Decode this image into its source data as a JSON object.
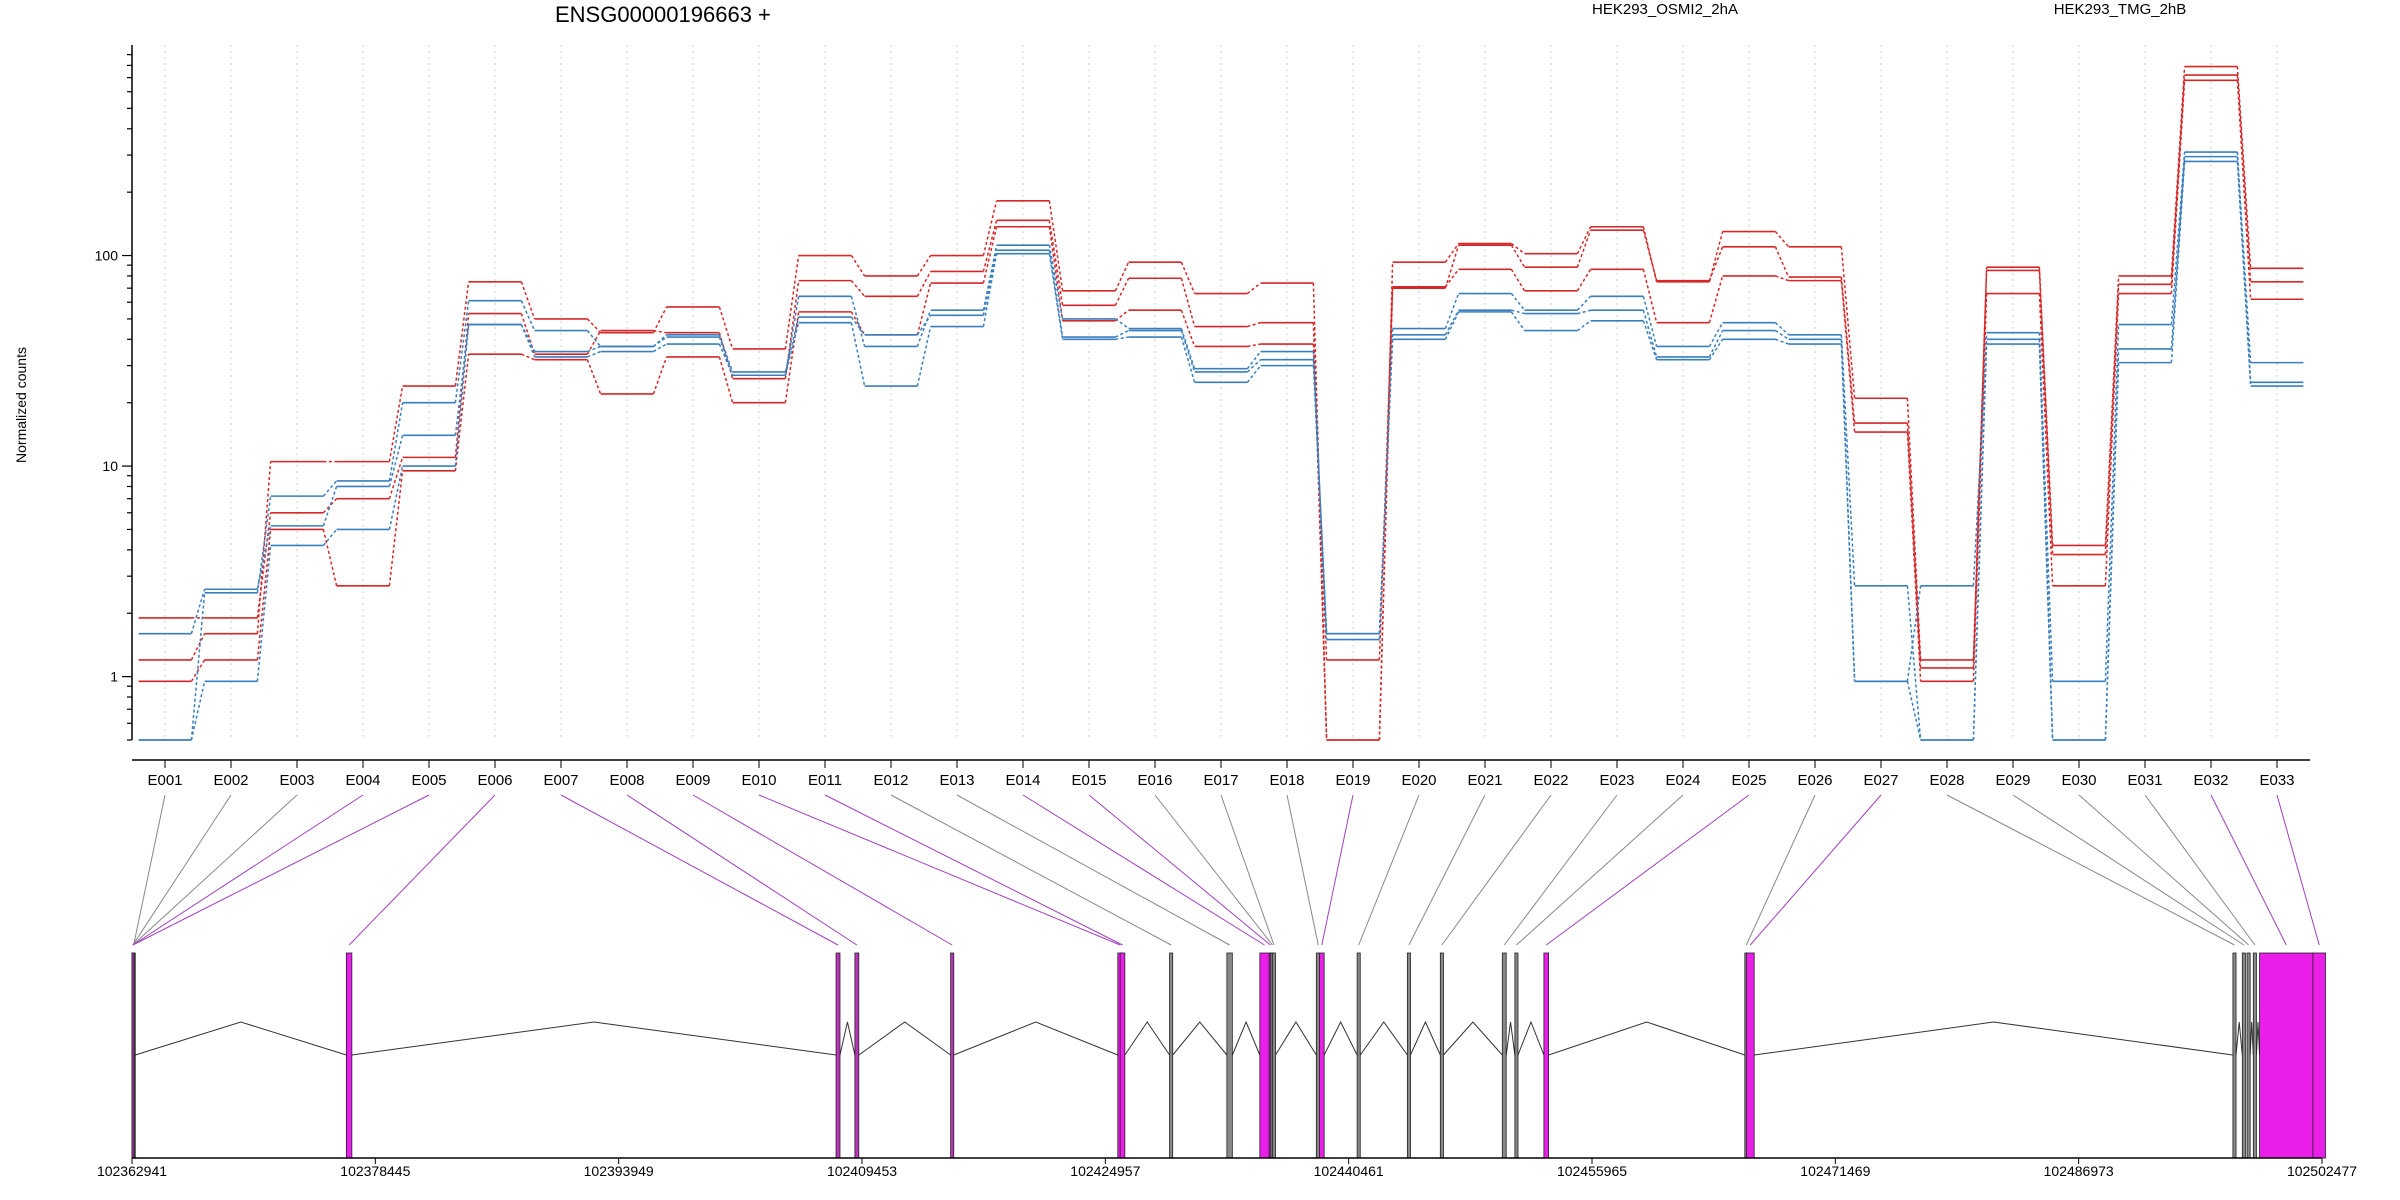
{
  "chart_data": {
    "type": "line",
    "title": "ENSG00000196663 +",
    "ylabel": "Normalized counts",
    "xlabel": "",
    "yscale": "log",
    "ylim": [
      0.5,
      1000
    ],
    "yticks": [
      1,
      10,
      100
    ],
    "ytick_labels": [
      "1",
      "10",
      "100"
    ],
    "grid": true,
    "legend": [
      {
        "name": "HEK293_OSMI2_2hA",
        "color": "#d62728"
      },
      {
        "name": "HEK293_TMG_2hB",
        "color": "#3a7fbd"
      }
    ],
    "categories": [
      "E001",
      "E002",
      "E003",
      "E004",
      "E005",
      "E006",
      "E007",
      "E008",
      "E009",
      "E010",
      "E011",
      "E012",
      "E013",
      "E014",
      "E015",
      "E016",
      "E017",
      "E018",
      "E019",
      "E020",
      "E021",
      "E022",
      "E023",
      "E024",
      "E025",
      "E026",
      "E027",
      "E028",
      "E029",
      "E030",
      "E031",
      "E032",
      "E033"
    ],
    "series": [
      {
        "group": "HEK293_OSMI2_2hA",
        "color": "#d62728",
        "values": [
          1.2,
          1.6,
          10.5,
          10.5,
          24,
          75,
          50,
          43,
          57,
          36,
          100,
          80,
          100,
          182,
          68,
          93,
          66,
          74,
          0.5,
          93,
          114,
          102,
          137,
          75,
          130,
          110,
          21,
          1.2,
          88,
          4.2,
          80,
          790,
          87
        ]
      },
      {
        "group": "HEK293_OSMI2_2hA",
        "color": "#d62728",
        "values": [
          1.9,
          1.9,
          6,
          7,
          11,
          53,
          34,
          44,
          43,
          26,
          76,
          64,
          84,
          147,
          58,
          78,
          46,
          48,
          0.5,
          70,
          112,
          88,
          132,
          76,
          110,
          79,
          16,
          1.1,
          85,
          3.8,
          73,
          720,
          75
        ]
      },
      {
        "group": "HEK293_OSMI2_2hA",
        "color": "#d62728",
        "values": [
          0.95,
          1.2,
          5,
          2.7,
          9.5,
          34,
          32,
          22,
          33,
          20,
          54,
          42,
          74,
          137,
          49,
          55,
          37,
          38,
          1.2,
          71,
          86,
          68,
          86,
          48,
          80,
          76,
          14.5,
          0.95,
          66,
          2.7,
          66,
          680,
          62
        ]
      },
      {
        "group": "HEK293_TMG_2hB",
        "color": "#3a7fbd",
        "values": [
          0.5,
          2.5,
          7.2,
          8.5,
          20,
          61,
          44,
          37,
          41,
          27,
          64,
          37,
          55,
          112,
          50,
          45,
          29,
          35,
          1.5,
          45,
          66,
          55,
          64,
          37,
          48,
          42,
          2.7,
          0.5,
          43,
          0.95,
          47,
          310,
          31
        ]
      },
      {
        "group": "HEK293_TMG_2hB",
        "color": "#3a7fbd",
        "values": [
          1.6,
          2.6,
          5.2,
          8,
          14,
          47,
          35,
          37,
          42,
          28,
          51,
          42,
          52,
          106,
          41,
          44,
          28,
          32,
          1.6,
          42,
          55,
          53,
          55,
          33,
          44,
          40,
          0.95,
          2.7,
          40,
          0.5,
          36,
          295,
          25
        ]
      },
      {
        "group": "HEK293_TMG_2hB",
        "color": "#3a7fbd",
        "values": [
          0.5,
          0.95,
          4.2,
          5,
          10,
          47,
          33,
          35,
          38,
          27,
          48,
          24,
          46,
          102,
          40,
          41,
          25,
          30,
          1.6,
          40,
          54,
          44,
          49,
          32,
          40,
          38,
          0.95,
          0.5,
          38,
          0.5,
          31,
          280,
          24
        ]
      }
    ],
    "gene_model": {
      "coordinates": [
        "102362941",
        "102378445",
        "102393949",
        "102409453",
        "102424957",
        "102440461",
        "102455965",
        "102471469",
        "102486973",
        "102502477"
      ],
      "coord_range": [
        102362941,
        102502477
      ],
      "exons": [
        {
          "id": "E001",
          "start": 102362941,
          "end": 102363150,
          "color": "#444444"
        },
        {
          "id": "E002",
          "start": 102362941,
          "end": 102363050,
          "color": "#444444"
        },
        {
          "id": "E003",
          "start": 102362941,
          "end": 102363050,
          "color": "#444444"
        },
        {
          "id": "E004",
          "start": 102362941,
          "end": 102363050,
          "color": "#bb33bb"
        },
        {
          "id": "E005",
          "start": 102362941,
          "end": 102363050,
          "color": "#bb33bb"
        },
        {
          "id": "E006",
          "start": 102376600,
          "end": 102376950,
          "color": "#e91ee9"
        },
        {
          "id": "E007",
          "start": 102407800,
          "end": 102408050,
          "color": "#bb33bb"
        },
        {
          "id": "E008",
          "start": 102409000,
          "end": 102409250,
          "color": "#bb33bb"
        },
        {
          "id": "E009",
          "start": 102415100,
          "end": 102415300,
          "color": "#bb33bb"
        },
        {
          "id": "E010",
          "start": 102425750,
          "end": 102426050,
          "color": "#e91ee9"
        },
        {
          "id": "E011",
          "start": 102425900,
          "end": 102426200,
          "color": "#e91ee9"
        },
        {
          "id": "E012",
          "start": 102429050,
          "end": 102429250,
          "color": "#888888"
        },
        {
          "id": "E013",
          "start": 102432700,
          "end": 102433050,
          "color": "#888888"
        },
        {
          "id": "E014",
          "start": 102434800,
          "end": 102435400,
          "color": "#e91ee9"
        },
        {
          "id": "E015",
          "start": 102435400,
          "end": 102435550,
          "color": "#bb33bb"
        },
        {
          "id": "E016",
          "start": 102435500,
          "end": 102435700,
          "color": "#888888"
        },
        {
          "id": "E017",
          "start": 102435600,
          "end": 102435800,
          "color": "#888888"
        },
        {
          "id": "E018",
          "start": 102438400,
          "end": 102438650,
          "color": "#888888"
        },
        {
          "id": "E019",
          "start": 102438600,
          "end": 102438900,
          "color": "#e91ee9"
        },
        {
          "id": "E020",
          "start": 102441000,
          "end": 102441200,
          "color": "#888888"
        },
        {
          "id": "E021",
          "start": 102444200,
          "end": 102444400,
          "color": "#888888"
        },
        {
          "id": "E022",
          "start": 102446300,
          "end": 102446500,
          "color": "#888888"
        },
        {
          "id": "E023",
          "start": 102450250,
          "end": 102450500,
          "color": "#888888"
        },
        {
          "id": "E024",
          "start": 102451050,
          "end": 102451250,
          "color": "#888888"
        },
        {
          "id": "E025",
          "start": 102452900,
          "end": 102453200,
          "color": "#e91ee9"
        },
        {
          "id": "E026",
          "start": 102465700,
          "end": 102465900,
          "color": "#888888"
        },
        {
          "id": "E027",
          "start": 102465800,
          "end": 102466300,
          "color": "#e91ee9"
        },
        {
          "id": "E028",
          "start": 102496800,
          "end": 102497000,
          "color": "#888888"
        },
        {
          "id": "E029",
          "start": 102497400,
          "end": 102497600,
          "color": "#888888"
        },
        {
          "id": "E030",
          "start": 102497700,
          "end": 102497900,
          "color": "#888888"
        },
        {
          "id": "E031",
          "start": 102498100,
          "end": 102498300,
          "color": "#888888"
        },
        {
          "id": "E032",
          "start": 102498500,
          "end": 102501900,
          "color": "#e91ee9"
        },
        {
          "id": "E033",
          "start": 102501900,
          "end": 102502700,
          "color": "#e91ee9"
        }
      ]
    }
  }
}
